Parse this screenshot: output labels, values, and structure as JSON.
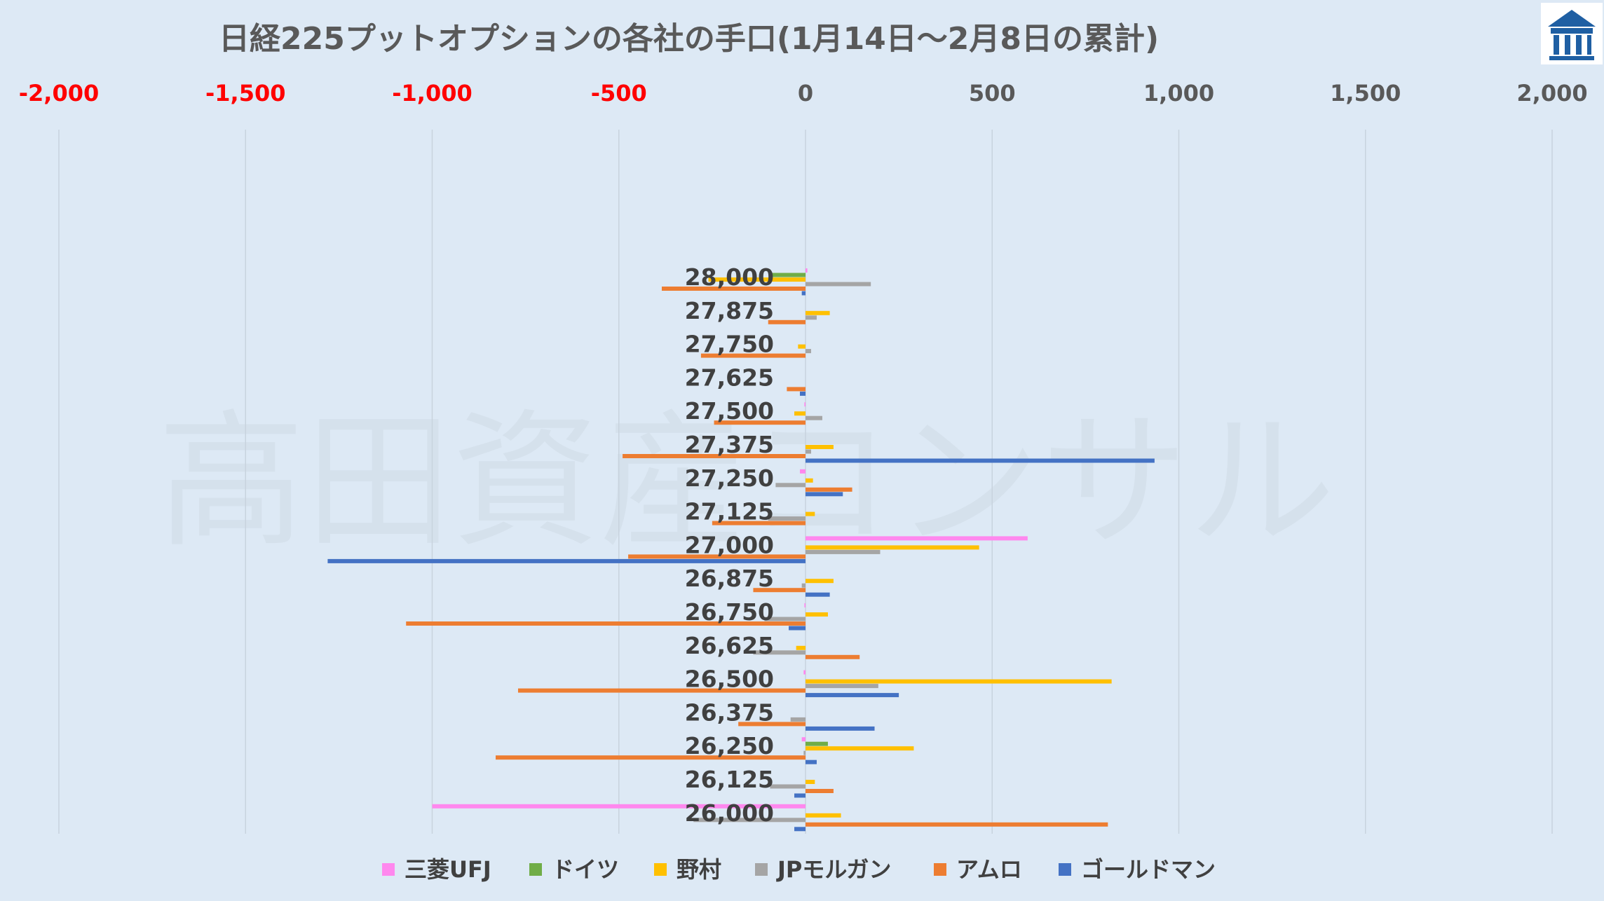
{
  "watermark": "高田資産コンサル",
  "logo": {
    "icon": "building-logo-icon",
    "color": "#1f5fa3"
  },
  "chart_data": {
    "type": "bar",
    "orientation": "horizontal",
    "title": "日経225プットオプションの各社の手口(1月14日～2月8日の累計)",
    "xlim": [
      -2000,
      2000
    ],
    "xticks": [
      -2000,
      -1500,
      -1000,
      -500,
      0,
      500,
      1000,
      1500,
      2000
    ],
    "xtick_labels": [
      "-2,000",
      "-1,500",
      "-1,000",
      "-500",
      "0",
      "500",
      "1,000",
      "1,500",
      "2,000"
    ],
    "xtick_colors": {
      "negative": "#ff0000",
      "nonnegative": "#595959"
    },
    "grid": true,
    "legend_position": "bottom",
    "categories": [
      "28,000",
      "27,875",
      "27,750",
      "27,625",
      "27,500",
      "27,375",
      "27,250",
      "27,125",
      "27,000",
      "26,875",
      "26,750",
      "26,625",
      "26,500",
      "26,375",
      "26,250",
      "26,125",
      "26,000"
    ],
    "series": [
      {
        "name": "三菱UFJ",
        "color": "#ff88ee",
        "values": [
          5,
          0,
          0,
          0,
          -3,
          0,
          -15,
          0,
          595,
          0,
          -3,
          0,
          -5,
          0,
          -10,
          0,
          -1000
        ]
      },
      {
        "name": "ドイツ",
        "color": "#70ad47",
        "values": [
          -95,
          0,
          0,
          0,
          0,
          0,
          0,
          0,
          0,
          0,
          0,
          0,
          0,
          0,
          60,
          0,
          0
        ]
      },
      {
        "name": "野村",
        "color": "#ffc000",
        "values": [
          -260,
          65,
          -20,
          0,
          -30,
          75,
          20,
          25,
          465,
          75,
          60,
          -25,
          820,
          0,
          290,
          25,
          95
        ]
      },
      {
        "name": "JPモルガン",
        "color": "#a5a5a5",
        "values": [
          175,
          30,
          15,
          0,
          45,
          15,
          -80,
          -100,
          200,
          -10,
          -110,
          -140,
          195,
          -40,
          -5,
          -95,
          -300
        ]
      },
      {
        "name": "アムロ",
        "color": "#ed7d31",
        "values": [
          -385,
          -100,
          -280,
          -50,
          -245,
          -490,
          125,
          -250,
          -475,
          -140,
          -1070,
          145,
          -770,
          -180,
          -830,
          75,
          810
        ]
      },
      {
        "name": "ゴールドマン",
        "color": "#4472c4",
        "values": [
          -10,
          0,
          0,
          -15,
          0,
          935,
          100,
          0,
          -1280,
          65,
          -45,
          0,
          250,
          185,
          30,
          -30,
          -30
        ]
      }
    ]
  }
}
